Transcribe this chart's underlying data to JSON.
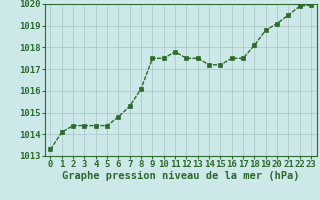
{
  "x": [
    0,
    1,
    2,
    3,
    4,
    5,
    6,
    7,
    8,
    9,
    10,
    11,
    12,
    13,
    14,
    15,
    16,
    17,
    18,
    19,
    20,
    21,
    22,
    23
  ],
  "y": [
    1013.3,
    1014.1,
    1014.4,
    1014.4,
    1014.4,
    1014.4,
    1014.8,
    1015.3,
    1016.1,
    1017.5,
    1017.5,
    1017.8,
    1017.5,
    1017.5,
    1017.2,
    1017.2,
    1017.5,
    1017.5,
    1018.1,
    1018.8,
    1019.1,
    1019.5,
    1019.9,
    1019.95
  ],
  "line_color": "#2d6a2d",
  "marker": "s",
  "marker_size": 2.5,
  "background_color": "#cce8e8",
  "grid_color": "#b0c8c8",
  "xlabel": "Graphe pression niveau de la mer (hPa)",
  "ylim": [
    1013,
    1020
  ],
  "xlim": [
    -0.5,
    23.5
  ],
  "yticks": [
    1013,
    1014,
    1015,
    1016,
    1017,
    1018,
    1019,
    1020
  ],
  "xticks": [
    0,
    1,
    2,
    3,
    4,
    5,
    6,
    7,
    8,
    9,
    10,
    11,
    12,
    13,
    14,
    15,
    16,
    17,
    18,
    19,
    20,
    21,
    22,
    23
  ],
  "xlabel_fontsize": 7.5,
  "tick_fontsize": 6.5,
  "line_width": 1.0
}
